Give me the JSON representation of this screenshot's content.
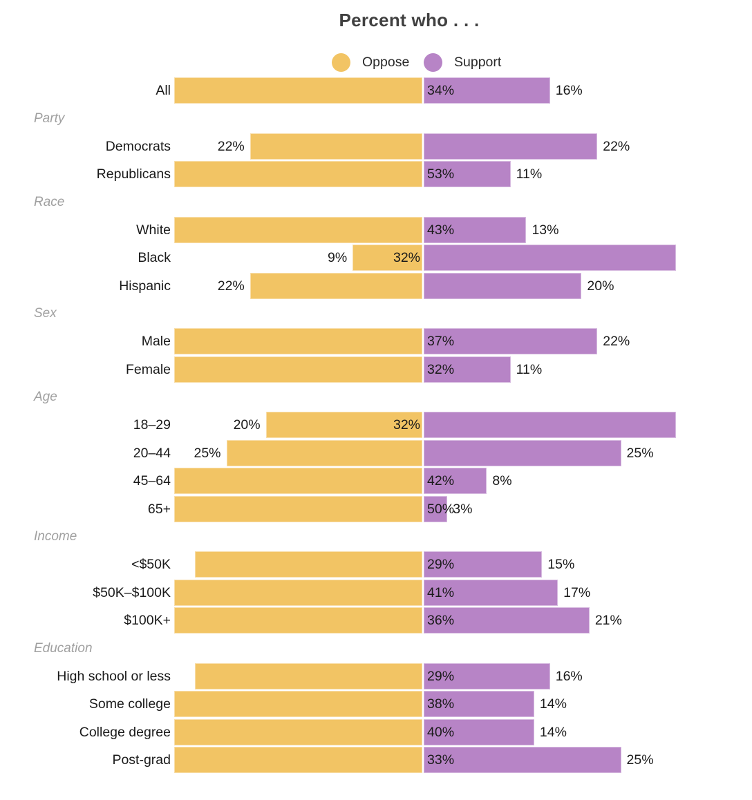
{
  "title": "Percent who . . .",
  "legend": {
    "oppose": {
      "label": "Oppose"
    },
    "support": {
      "label": "Support"
    }
  },
  "colors": {
    "oppose": "#F2C464",
    "purple_support": "#B784C6",
    "title_text": "#404040",
    "label_text": "#1a1a1a",
    "section_header_text": "#a0a0a0"
  },
  "chart_data": {
    "type": "bar",
    "orientation": "diverging-horizontal",
    "unit": "percent",
    "series": [
      "Oppose",
      "Support"
    ],
    "title": "Percent who . . .",
    "legend_position": "top-center",
    "grid": false,
    "groups": [
      {
        "header": null,
        "rows": [
          {
            "label": "All",
            "oppose": 34,
            "support": 16,
            "oppose_label": "34%",
            "support_label": "16%"
          }
        ]
      },
      {
        "header": "Party",
        "rows": [
          {
            "label": "Democrats",
            "oppose": 22,
            "support": 22,
            "oppose_label": "22%",
            "support_label": "22%"
          },
          {
            "label": "Republicans",
            "oppose": 53,
            "support": 11,
            "oppose_label": "53%",
            "support_label": "11%"
          }
        ]
      },
      {
        "header": "Race",
        "rows": [
          {
            "label": "White",
            "oppose": 43,
            "support": 13,
            "oppose_label": "43%",
            "support_label": "13%"
          },
          {
            "label": "Black",
            "oppose": 9,
            "support": 32,
            "oppose_label": "9%",
            "support_label": "32%"
          },
          {
            "label": "Hispanic",
            "oppose": 22,
            "support": 20,
            "oppose_label": "22%",
            "support_label": "20%"
          }
        ]
      },
      {
        "header": "Sex",
        "rows": [
          {
            "label": "Male",
            "oppose": 37,
            "support": 22,
            "oppose_label": "37%",
            "support_label": "22%"
          },
          {
            "label": "Female",
            "oppose": 32,
            "support": 11,
            "oppose_label": "32%",
            "support_label": "11%"
          }
        ]
      },
      {
        "header": "Age",
        "rows": [
          {
            "label": "18–29",
            "oppose": 20,
            "support": 32,
            "oppose_label": "20%",
            "support_label": "32%"
          },
          {
            "label": "20–44",
            "oppose": 25,
            "support": 25,
            "oppose_label": "25%",
            "support_label": "25%"
          },
          {
            "label": "45–64",
            "oppose": 42,
            "support": 8,
            "oppose_label": "42%",
            "support_label": "8%"
          },
          {
            "label": "65+",
            "oppose": 50,
            "support": 3,
            "oppose_label": "50%",
            "support_label": "3%"
          }
        ]
      },
      {
        "header": "Income",
        "rows": [
          {
            "label": "<$50K",
            "oppose": 29,
            "support": 15,
            "oppose_label": "29%",
            "support_label": "15%"
          },
          {
            "label": "$50K–$100K",
            "oppose": 41,
            "support": 17,
            "oppose_label": "41%",
            "support_label": "17%"
          },
          {
            "label": "$100K+",
            "oppose": 36,
            "support": 21,
            "oppose_label": "36%",
            "support_label": "21%"
          }
        ]
      },
      {
        "header": "Education",
        "rows": [
          {
            "label": "High school or less",
            "oppose": 29,
            "support": 16,
            "oppose_label": "29%",
            "support_label": "16%"
          },
          {
            "label": "Some college",
            "oppose": 38,
            "support": 14,
            "oppose_label": "38%",
            "support_label": "14%"
          },
          {
            "label": "College degree",
            "oppose": 40,
            "support": 14,
            "oppose_label": "40%",
            "support_label": "14%"
          },
          {
            "label": "Post-grad",
            "oppose": 33,
            "support": 25,
            "oppose_label": "33%",
            "support_label": "25%"
          }
        ]
      }
    ]
  }
}
